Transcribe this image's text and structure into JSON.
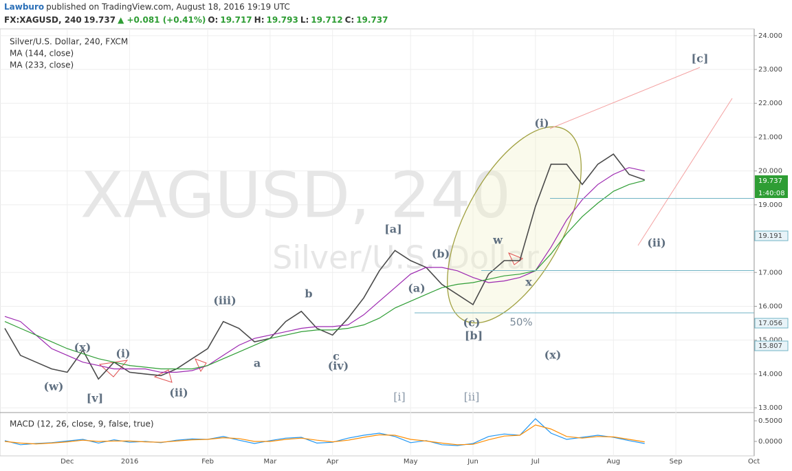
{
  "header": {
    "author": "Lawburo",
    "published": "published on TradingView.com, August 18, 2016 19:19 UTC",
    "symbol": "FX:XAGUSD, 240",
    "last": "19.737",
    "change": "▲ +0.081 (+0.41%)",
    "open_label": "O:",
    "open": "19.717",
    "high_label": "H:",
    "high": "19.793",
    "low_label": "L:",
    "low": "19.712",
    "close_label": "C:",
    "close": "19.737"
  },
  "chart_data": [
    {
      "type": "line",
      "watermark": [
        "XAGUSD, 240",
        "Silver/U.S. Dollar"
      ],
      "categories": [
        null,
        null,
        null,
        null,
        "Dec",
        null,
        null,
        null,
        "2016",
        null,
        null,
        null,
        null,
        "Feb",
        null,
        null,
        null,
        "Mar",
        null,
        null,
        null,
        "Apr",
        null,
        null,
        null,
        null,
        "May",
        null,
        null,
        null,
        "Jun",
        null,
        null,
        null,
        "Jul",
        null,
        null,
        null,
        null,
        "Aug",
        null,
        null,
        null,
        "Sep",
        null,
        null,
        null,
        null,
        "Oct"
      ],
      "series": [
        {
          "name": "Silver/U.S. Dollar, 240, FXCM",
          "color": "#4a4a4a",
          "values": [
            15.35,
            14.55,
            14.35,
            14.15,
            14.05,
            14.7,
            13.85,
            14.35,
            14.05,
            14.0,
            13.95,
            14.15,
            14.45,
            14.75,
            15.55,
            15.35,
            14.95,
            15.05,
            15.55,
            15.85,
            15.35,
            15.15,
            15.65,
            16.25,
            17.05,
            17.65,
            17.35,
            17.15,
            16.65,
            16.35,
            16.05,
            16.95,
            17.35,
            17.35,
            18.95,
            20.2,
            20.2,
            19.6,
            20.2,
            20.5,
            19.9,
            19.737,
            null,
            null,
            null,
            null,
            null,
            null,
            null
          ]
        },
        {
          "name": "MA (144, close)",
          "color": "#9c27b0",
          "values": [
            15.7,
            15.55,
            15.15,
            14.75,
            14.55,
            14.35,
            14.25,
            14.15,
            14.15,
            14.15,
            14.05,
            14.05,
            14.1,
            14.25,
            14.55,
            14.85,
            15.05,
            15.15,
            15.25,
            15.35,
            15.4,
            15.4,
            15.45,
            15.75,
            16.15,
            16.55,
            16.95,
            17.15,
            17.15,
            17.05,
            16.85,
            16.7,
            16.75,
            16.85,
            17.05,
            17.75,
            18.55,
            19.15,
            19.6,
            19.9,
            20.1,
            20.0,
            null,
            null,
            null,
            null,
            null,
            null,
            null
          ]
        },
        {
          "name": "MA (233, close)",
          "color": "#2e9d34",
          "values": [
            15.55,
            15.35,
            15.15,
            14.95,
            14.75,
            14.6,
            14.45,
            14.35,
            14.25,
            14.2,
            14.15,
            14.15,
            14.15,
            14.25,
            14.45,
            14.65,
            14.85,
            15.05,
            15.15,
            15.25,
            15.3,
            15.3,
            15.35,
            15.45,
            15.65,
            15.95,
            16.15,
            16.35,
            16.55,
            16.65,
            16.7,
            16.8,
            16.9,
            16.95,
            17.05,
            17.55,
            18.15,
            18.65,
            19.05,
            19.4,
            19.6,
            19.72,
            null,
            null,
            null,
            null,
            null,
            null,
            null
          ]
        }
      ],
      "ylim": [
        12.9,
        24.2
      ],
      "yticks": [
        {
          "value": 24,
          "label": "24.000"
        },
        {
          "value": 23,
          "label": "23.000"
        },
        {
          "value": 22,
          "label": "22.000"
        },
        {
          "value": 21,
          "label": "21.000"
        },
        {
          "value": 20,
          "label": "20.000"
        },
        {
          "value": 19,
          "label": "19.000"
        },
        {
          "value": 17,
          "label": "17.000"
        },
        {
          "value": 16,
          "label": "16.000"
        },
        {
          "value": 15,
          "label": "15.000"
        },
        {
          "value": 14,
          "label": "14.000"
        },
        {
          "value": 13,
          "label": "13.000"
        }
      ],
      "grid": true,
      "price_lines": [
        19.191,
        17.056,
        15.807
      ],
      "countdown": "1:40:08",
      "annotations": [
        "(i)",
        "[c]",
        "(ii)",
        "[a]",
        "(b)",
        "(a)",
        "w",
        "x",
        "(c)",
        "[b]",
        "50%",
        "(x)",
        "[i]",
        "[ii]",
        "(iii)",
        "b",
        "a",
        "c",
        "(iv)",
        "(x)",
        "(i)",
        "(w)",
        "[v]",
        "(ii)"
      ]
    },
    {
      "type": "line",
      "title": "MACD (12, 26, close, 9, false, true)",
      "series": [
        {
          "name": "MACD",
          "color": "#2196f3",
          "values": [
            0.02,
            -0.08,
            -0.05,
            -0.03,
            0.01,
            0.05,
            -0.04,
            0.04,
            -0.02,
            0.0,
            -0.03,
            0.03,
            0.06,
            0.05,
            0.12,
            0.03,
            -0.05,
            0.02,
            0.08,
            0.1,
            -0.04,
            -0.02,
            0.08,
            0.15,
            0.2,
            0.12,
            -0.03,
            0.02,
            -0.08,
            -0.1,
            -0.05,
            0.12,
            0.18,
            0.15,
            0.55,
            0.2,
            0.05,
            0.1,
            0.15,
            0.1,
            0.02,
            -0.05,
            null,
            null,
            null,
            null,
            null,
            null,
            null
          ]
        },
        {
          "name": "Signal",
          "color": "#ff8c00",
          "values": [
            0.0,
            -0.04,
            -0.06,
            -0.04,
            -0.01,
            0.03,
            0.0,
            0.01,
            0.01,
            -0.01,
            -0.02,
            0.01,
            0.04,
            0.05,
            0.09,
            0.07,
            0.0,
            0.0,
            0.05,
            0.08,
            0.03,
            -0.01,
            0.03,
            0.1,
            0.16,
            0.15,
            0.05,
            0.01,
            -0.04,
            -0.08,
            -0.07,
            0.04,
            0.13,
            0.15,
            0.4,
            0.3,
            0.12,
            0.08,
            0.12,
            0.11,
            0.05,
            -0.01,
            null,
            null,
            null,
            null,
            null,
            null,
            null
          ]
        }
      ],
      "ylim": [
        -0.3,
        0.7
      ],
      "yticks": [
        {
          "value": 0.5,
          "label": "0.5000"
        },
        {
          "value": 0,
          "label": "0.0000"
        }
      ]
    }
  ]
}
